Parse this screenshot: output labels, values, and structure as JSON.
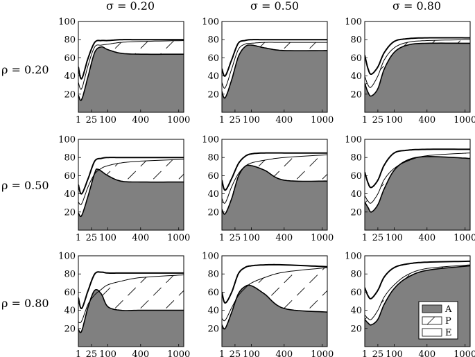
{
  "figure": {
    "column_headers": [
      "σ = 0.20",
      "σ = 0.50",
      "σ = 0.80"
    ],
    "row_headers": [
      "ρ = 0.20",
      "ρ = 0.50",
      "ρ = 0.80"
    ]
  },
  "chart_data": {
    "type": "area",
    "x_scale": "sqrt",
    "xlim": [
      1,
      1100
    ],
    "ylim": [
      0,
      100
    ],
    "x_ticks": [
      1,
      25,
      100,
      400,
      1000
    ],
    "x_tick_labels": [
      "1",
      "25",
      "100",
      "400",
      "1000"
    ],
    "y_ticks": [
      20,
      40,
      60,
      80,
      100
    ],
    "y_tick_labels": [
      "20",
      "40",
      "60",
      "80",
      "100"
    ],
    "grid": false,
    "legend": {
      "placement": "bottom-right",
      "panel": 8,
      "entries": [
        {
          "key": "A",
          "label": "A",
          "style": "solid-gray"
        },
        {
          "key": "P",
          "label": "P",
          "style": "hatched"
        },
        {
          "key": "E",
          "label": "E",
          "style": "white"
        }
      ]
    },
    "panels": [
      {
        "row": 0,
        "col": 0,
        "A": [
          [
            1,
            19
          ],
          [
            4,
            14
          ],
          [
            16,
            40
          ],
          [
            36,
            66
          ],
          [
            64,
            72
          ],
          [
            100,
            69
          ],
          [
            196,
            65
          ],
          [
            400,
            64
          ],
          [
            1100,
            64
          ]
        ],
        "AP": [
          [
            1,
            33
          ],
          [
            4,
            26
          ],
          [
            16,
            52
          ],
          [
            36,
            72
          ],
          [
            64,
            74
          ],
          [
            100,
            75
          ],
          [
            196,
            77
          ],
          [
            400,
            78
          ],
          [
            1100,
            79
          ]
        ],
        "APE": [
          [
            1,
            50
          ],
          [
            4,
            37
          ],
          [
            16,
            60
          ],
          [
            36,
            77
          ],
          [
            64,
            79
          ],
          [
            100,
            79
          ],
          [
            196,
            80
          ],
          [
            400,
            80
          ],
          [
            1100,
            80
          ]
        ]
      },
      {
        "row": 0,
        "col": 1,
        "A": [
          [
            1,
            23
          ],
          [
            4,
            16
          ],
          [
            16,
            36
          ],
          [
            36,
            61
          ],
          [
            64,
            72
          ],
          [
            100,
            74
          ],
          [
            196,
            71
          ],
          [
            400,
            68
          ],
          [
            1100,
            68
          ]
        ],
        "AP": [
          [
            1,
            33
          ],
          [
            4,
            27
          ],
          [
            16,
            48
          ],
          [
            36,
            69
          ],
          [
            64,
            75
          ],
          [
            100,
            76
          ],
          [
            196,
            77
          ],
          [
            400,
            77
          ],
          [
            1100,
            77
          ]
        ],
        "APE": [
          [
            1,
            48
          ],
          [
            4,
            40
          ],
          [
            16,
            58
          ],
          [
            36,
            76
          ],
          [
            64,
            79
          ],
          [
            100,
            80
          ],
          [
            196,
            80
          ],
          [
            400,
            80
          ],
          [
            1100,
            80
          ]
        ]
      },
      {
        "row": 0,
        "col": 2,
        "A": [
          [
            1,
            32
          ],
          [
            4,
            22
          ],
          [
            9,
            18
          ],
          [
            25,
            26
          ],
          [
            49,
            48
          ],
          [
            100,
            66
          ],
          [
            196,
            74
          ],
          [
            400,
            76
          ],
          [
            1100,
            76
          ]
        ],
        "AP": [
          [
            1,
            40
          ],
          [
            4,
            30
          ],
          [
            9,
            28
          ],
          [
            25,
            40
          ],
          [
            49,
            58
          ],
          [
            100,
            71
          ],
          [
            196,
            77
          ],
          [
            400,
            79
          ],
          [
            1100,
            80
          ]
        ],
        "APE": [
          [
            1,
            63
          ],
          [
            4,
            48
          ],
          [
            9,
            42
          ],
          [
            25,
            50
          ],
          [
            49,
            66
          ],
          [
            100,
            78
          ],
          [
            196,
            81
          ],
          [
            400,
            82
          ],
          [
            1100,
            82
          ]
        ]
      },
      {
        "row": 1,
        "col": 0,
        "A": [
          [
            1,
            19
          ],
          [
            4,
            16
          ],
          [
            16,
            38
          ],
          [
            36,
            63
          ],
          [
            49,
            67
          ],
          [
            100,
            60
          ],
          [
            196,
            54
          ],
          [
            400,
            53
          ],
          [
            1100,
            53
          ]
        ],
        "AP": [
          [
            1,
            31
          ],
          [
            4,
            29
          ],
          [
            16,
            48
          ],
          [
            36,
            62
          ],
          [
            64,
            68
          ],
          [
            100,
            71
          ],
          [
            196,
            74
          ],
          [
            400,
            76
          ],
          [
            1100,
            78
          ]
        ],
        "APE": [
          [
            1,
            50
          ],
          [
            4,
            40
          ],
          [
            16,
            57
          ],
          [
            36,
            76
          ],
          [
            64,
            79
          ],
          [
            100,
            80
          ],
          [
            196,
            80
          ],
          [
            400,
            80
          ],
          [
            1100,
            80
          ]
        ]
      },
      {
        "row": 1,
        "col": 1,
        "A": [
          [
            1,
            23
          ],
          [
            4,
            18
          ],
          [
            16,
            35
          ],
          [
            36,
            59
          ],
          [
            64,
            70
          ],
          [
            100,
            71
          ],
          [
            196,
            66
          ],
          [
            400,
            55
          ],
          [
            1100,
            54
          ]
        ],
        "AP": [
          [
            1,
            35
          ],
          [
            4,
            30
          ],
          [
            16,
            48
          ],
          [
            36,
            62
          ],
          [
            64,
            70
          ],
          [
            100,
            74
          ],
          [
            196,
            77
          ],
          [
            400,
            80
          ],
          [
            1100,
            83
          ]
        ],
        "APE": [
          [
            1,
            55
          ],
          [
            4,
            44
          ],
          [
            16,
            57
          ],
          [
            36,
            73
          ],
          [
            64,
            81
          ],
          [
            100,
            84
          ],
          [
            196,
            85
          ],
          [
            400,
            85
          ],
          [
            1100,
            85
          ]
        ]
      },
      {
        "row": 1,
        "col": 2,
        "A": [
          [
            1,
            31
          ],
          [
            4,
            25
          ],
          [
            9,
            20
          ],
          [
            25,
            28
          ],
          [
            49,
            46
          ],
          [
            100,
            66
          ],
          [
            196,
            77
          ],
          [
            400,
            81
          ],
          [
            1100,
            79
          ]
        ],
        "AP": [
          [
            1,
            38
          ],
          [
            4,
            32
          ],
          [
            9,
            30
          ],
          [
            25,
            40
          ],
          [
            49,
            56
          ],
          [
            100,
            68
          ],
          [
            196,
            76
          ],
          [
            400,
            82
          ],
          [
            1100,
            85
          ]
        ],
        "APE": [
          [
            1,
            64
          ],
          [
            4,
            52
          ],
          [
            9,
            47
          ],
          [
            25,
            55
          ],
          [
            49,
            72
          ],
          [
            100,
            85
          ],
          [
            196,
            88
          ],
          [
            400,
            89
          ],
          [
            1100,
            89
          ]
        ]
      },
      {
        "row": 2,
        "col": 0,
        "A": [
          [
            1,
            19
          ],
          [
            4,
            17
          ],
          [
            16,
            44
          ],
          [
            36,
            62
          ],
          [
            64,
            58
          ],
          [
            100,
            44
          ],
          [
            196,
            40
          ],
          [
            400,
            40
          ],
          [
            1100,
            40
          ]
        ],
        "AP": [
          [
            1,
            27
          ],
          [
            4,
            28
          ],
          [
            16,
            47
          ],
          [
            36,
            57
          ],
          [
            64,
            63
          ],
          [
            100,
            68
          ],
          [
            196,
            72
          ],
          [
            400,
            76
          ],
          [
            1100,
            79
          ]
        ],
        "APE": [
          [
            1,
            54
          ],
          [
            4,
            42
          ],
          [
            16,
            62
          ],
          [
            36,
            80
          ],
          [
            64,
            82
          ],
          [
            100,
            81
          ],
          [
            196,
            81
          ],
          [
            400,
            81
          ],
          [
            1100,
            81
          ]
        ]
      },
      {
        "row": 2,
        "col": 1,
        "A": [
          [
            1,
            24
          ],
          [
            4,
            20
          ],
          [
            16,
            38
          ],
          [
            36,
            58
          ],
          [
            64,
            66
          ],
          [
            100,
            67
          ],
          [
            196,
            58
          ],
          [
            400,
            42
          ],
          [
            1100,
            38
          ]
        ],
        "AP": [
          [
            1,
            31
          ],
          [
            4,
            29
          ],
          [
            16,
            43
          ],
          [
            36,
            56
          ],
          [
            64,
            64
          ],
          [
            100,
            70
          ],
          [
            196,
            76
          ],
          [
            400,
            82
          ],
          [
            1100,
            87
          ]
        ],
        "APE": [
          [
            1,
            60
          ],
          [
            4,
            48
          ],
          [
            16,
            60
          ],
          [
            36,
            80
          ],
          [
            64,
            87
          ],
          [
            100,
            89
          ],
          [
            196,
            90
          ],
          [
            400,
            90
          ],
          [
            1100,
            88
          ]
        ]
      },
      {
        "row": 2,
        "col": 2,
        "A": [
          [
            1,
            30
          ],
          [
            4,
            26
          ],
          [
            9,
            24
          ],
          [
            25,
            30
          ],
          [
            49,
            47
          ],
          [
            100,
            64
          ],
          [
            196,
            76
          ],
          [
            400,
            84
          ],
          [
            1100,
            89
          ]
        ],
        "AP": [
          [
            1,
            35
          ],
          [
            4,
            31
          ],
          [
            9,
            30
          ],
          [
            25,
            40
          ],
          [
            49,
            55
          ],
          [
            100,
            68
          ],
          [
            196,
            79
          ],
          [
            400,
            86
          ],
          [
            1100,
            90
          ]
        ],
        "APE": [
          [
            1,
            65
          ],
          [
            4,
            56
          ],
          [
            9,
            53
          ],
          [
            25,
            62
          ],
          [
            49,
            77
          ],
          [
            100,
            87
          ],
          [
            196,
            91
          ],
          [
            400,
            93
          ],
          [
            1100,
            94
          ]
        ]
      }
    ]
  }
}
